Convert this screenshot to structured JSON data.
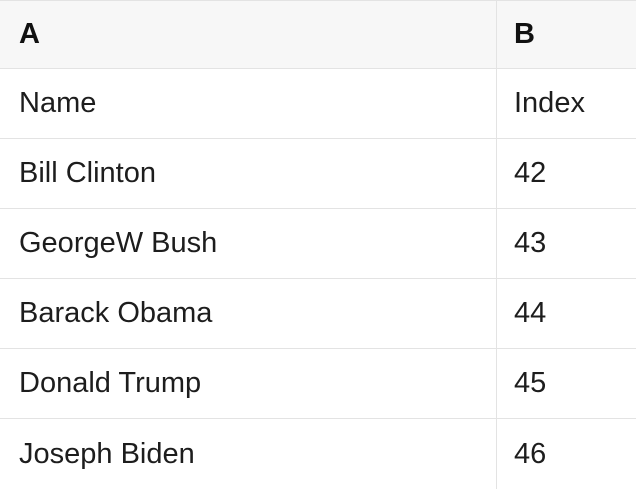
{
  "table": {
    "columns": [
      {
        "label": "A"
      },
      {
        "label": "B"
      }
    ],
    "rows": [
      [
        "Name",
        "Index"
      ],
      [
        "Bill Clinton",
        "42"
      ],
      [
        "GeorgeW Bush",
        "43"
      ],
      [
        "Barack Obama",
        "44"
      ],
      [
        "Donald Trump",
        "45"
      ],
      [
        "Joseph Biden",
        "46"
      ]
    ]
  },
  "chart_data": {
    "type": "table",
    "columns": [
      "A",
      "B"
    ],
    "rows": [
      [
        "Name",
        "Index"
      ],
      [
        "Bill Clinton",
        "42"
      ],
      [
        "GeorgeW Bush",
        "43"
      ],
      [
        "Barack Obama",
        "44"
      ],
      [
        "Donald Trump",
        "45"
      ],
      [
        "Joseph Biden",
        "46"
      ]
    ]
  },
  "colors": {
    "header_bg": "#f7f7f7",
    "border": "#e3e3e3",
    "text": "#1d1d1d"
  }
}
